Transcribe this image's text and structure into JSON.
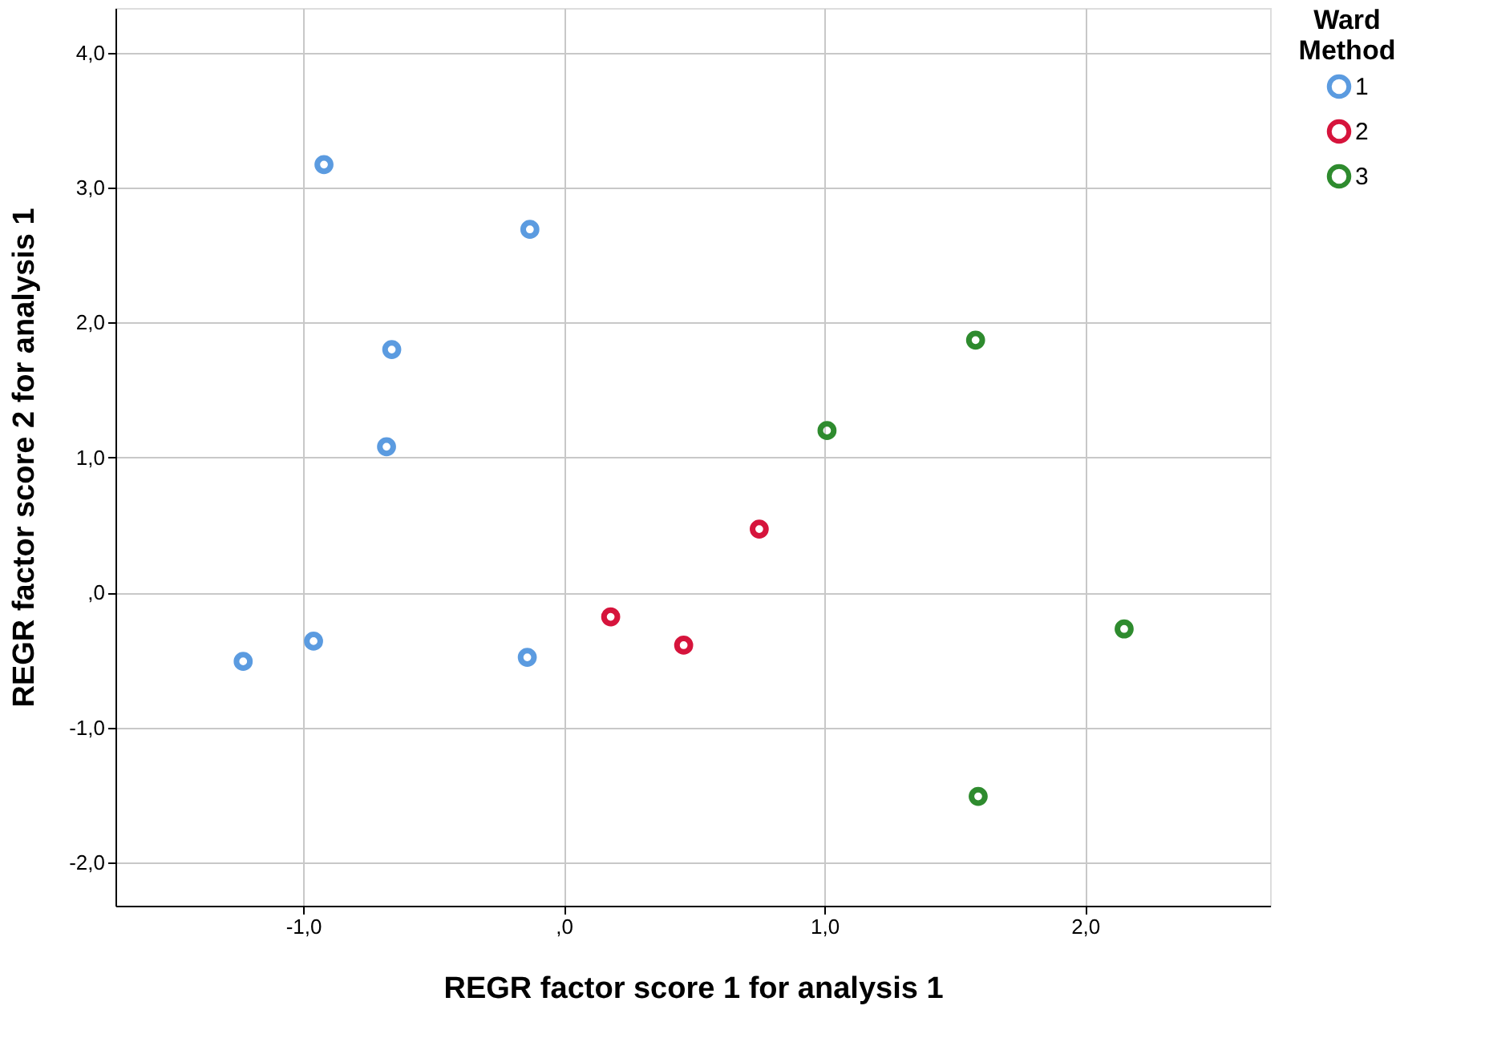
{
  "chart_data": {
    "type": "scatter",
    "xlabel": "REGR factor score   1 for analysis 1",
    "ylabel": "REGR factor score   2 for analysis 1",
    "legend_title": "Ward Method",
    "xlim": [
      -1.72,
      2.71
    ],
    "ylim": [
      -2.32,
      4.33
    ],
    "xticks": [
      {
        "value": -1,
        "label": "-1,0"
      },
      {
        "value": 0,
        "label": ",0"
      },
      {
        "value": 1,
        "label": "1,0"
      },
      {
        "value": 2,
        "label": "2,0"
      }
    ],
    "yticks": [
      {
        "value": -2,
        "label": "-2,0"
      },
      {
        "value": -1,
        "label": "-1,0"
      },
      {
        "value": 0,
        "label": ",0"
      },
      {
        "value": 1,
        "label": "1,0"
      },
      {
        "value": 2,
        "label": "2,0"
      },
      {
        "value": 3,
        "label": "3,0"
      },
      {
        "value": 4,
        "label": "4,0"
      }
    ],
    "grid": true,
    "legend": "top right",
    "marker": "circle",
    "series": [
      {
        "name": "1",
        "color": "#5b9be0",
        "x": [
          -0.92,
          -0.13,
          -0.66,
          -0.68,
          -1.23,
          -0.96,
          -0.14
        ],
        "values": [
          3.17,
          2.69,
          1.8,
          1.08,
          -0.51,
          -0.36,
          -0.48
        ]
      },
      {
        "name": "2",
        "color": "#d6143c",
        "x": [
          0.75,
          0.18,
          0.46
        ],
        "values": [
          0.47,
          -0.18,
          -0.39
        ]
      },
      {
        "name": "3",
        "color": "#2e8b2e",
        "x": [
          1.58,
          1.01,
          2.15,
          1.59
        ],
        "values": [
          1.87,
          1.2,
          -0.27,
          -1.51
        ]
      }
    ]
  }
}
